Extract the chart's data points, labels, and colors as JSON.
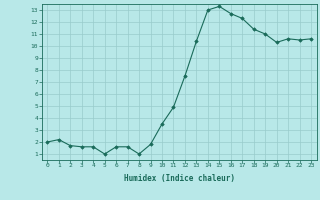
{
  "x": [
    0,
    1,
    2,
    3,
    4,
    5,
    6,
    7,
    8,
    9,
    10,
    11,
    12,
    13,
    14,
    15,
    16,
    17,
    18,
    19,
    20,
    21,
    22,
    23
  ],
  "y": [
    2.0,
    2.2,
    1.7,
    1.6,
    1.6,
    1.0,
    1.6,
    1.6,
    1.0,
    1.8,
    3.5,
    4.9,
    7.5,
    10.4,
    13.0,
    13.3,
    12.7,
    12.3,
    11.4,
    11.0,
    10.3,
    10.6,
    10.5,
    10.6
  ],
  "xlabel": "Humidex (Indice chaleur)",
  "bg_color": "#b8e8e8",
  "line_color": "#1a6b5a",
  "grid_color": "#99cccc",
  "ylim": [
    0.5,
    13.5
  ],
  "xlim": [
    -0.5,
    23.5
  ],
  "yticks": [
    1,
    2,
    3,
    4,
    5,
    6,
    7,
    8,
    9,
    10,
    11,
    12,
    13
  ],
  "xticks": [
    0,
    1,
    2,
    3,
    4,
    5,
    6,
    7,
    8,
    9,
    10,
    11,
    12,
    13,
    14,
    15,
    16,
    17,
    18,
    19,
    20,
    21,
    22,
    23
  ]
}
